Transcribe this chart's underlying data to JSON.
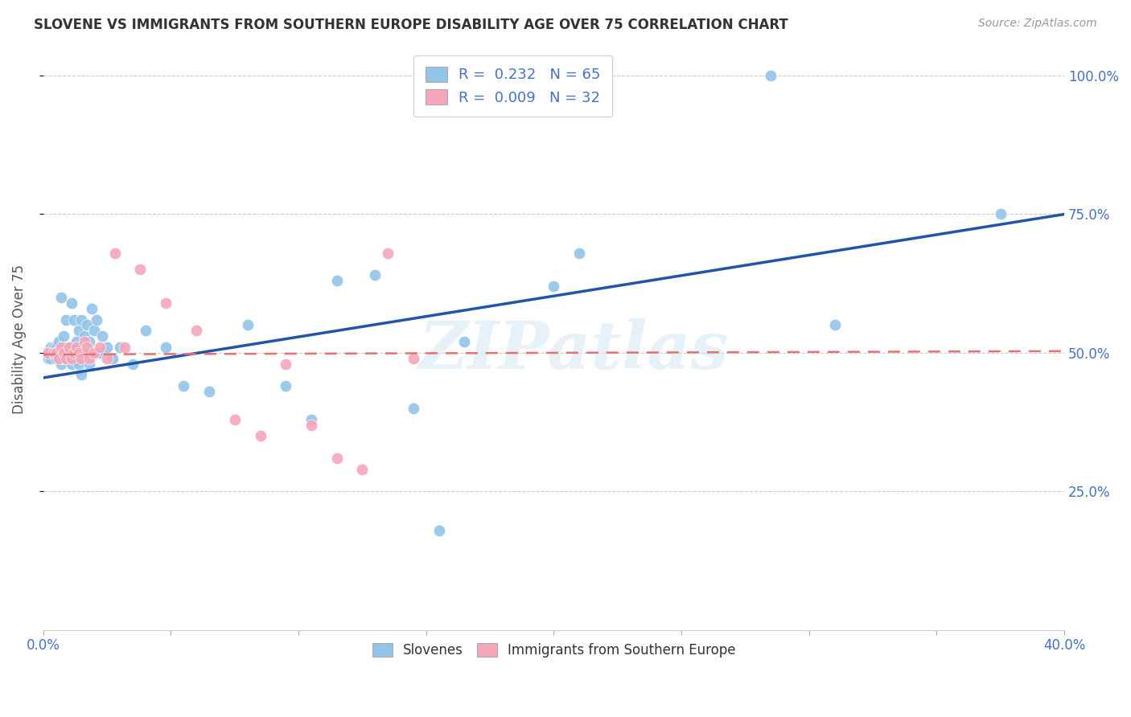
{
  "title": "SLOVENE VS IMMIGRANTS FROM SOUTHERN EUROPE DISABILITY AGE OVER 75 CORRELATION CHART",
  "source": "Source: ZipAtlas.com",
  "ylabel": "Disability Age Over 75",
  "xlim": [
    0.0,
    0.4
  ],
  "ylim": [
    0.0,
    1.05
  ],
  "yticks": [
    0.25,
    0.5,
    0.75,
    1.0
  ],
  "ytick_labels": [
    "25.0%",
    "50.0%",
    "75.0%",
    "100.0%"
  ],
  "xticks": [
    0.0,
    0.05,
    0.1,
    0.15,
    0.2,
    0.25,
    0.3,
    0.35,
    0.4
  ],
  "xtick_labels": [
    "0.0%",
    "",
    "",
    "",
    "",
    "",
    "",
    "",
    "40.0%"
  ],
  "legend_line1": "R =  0.232   N = 65",
  "legend_line2": "R =  0.009   N = 32",
  "color_slovene": "#92C5E8",
  "color_immigrant": "#F4A7B9",
  "trendline_slovene_color": "#2255AA",
  "trendline_immigrant_color": "#E87070",
  "background_color": "#FFFFFF",
  "watermark": "ZIPatlas",
  "slovene_trendline_x": [
    0.0,
    0.4
  ],
  "slovene_trendline_y": [
    0.455,
    0.75
  ],
  "immigrant_trendline_x": [
    0.0,
    0.4
  ],
  "immigrant_trendline_y": [
    0.497,
    0.503
  ],
  "slovene_x": [
    0.001,
    0.002,
    0.002,
    0.003,
    0.003,
    0.004,
    0.004,
    0.005,
    0.005,
    0.005,
    0.006,
    0.006,
    0.006,
    0.007,
    0.007,
    0.007,
    0.008,
    0.008,
    0.008,
    0.009,
    0.009,
    0.01,
    0.01,
    0.011,
    0.011,
    0.012,
    0.012,
    0.013,
    0.014,
    0.014,
    0.015,
    0.015,
    0.016,
    0.016,
    0.017,
    0.018,
    0.018,
    0.019,
    0.02,
    0.021,
    0.022,
    0.023,
    0.025,
    0.027,
    0.03,
    0.035,
    0.04,
    0.048,
    0.055,
    0.065,
    0.08,
    0.095,
    0.105,
    0.115,
    0.13,
    0.145,
    0.155,
    0.165,
    0.17,
    0.175,
    0.2,
    0.21,
    0.285,
    0.31,
    0.375
  ],
  "slovene_y": [
    0.5,
    0.5,
    0.49,
    0.51,
    0.49,
    0.5,
    0.51,
    0.5,
    0.49,
    0.51,
    0.52,
    0.49,
    0.5,
    0.51,
    0.48,
    0.6,
    0.53,
    0.49,
    0.51,
    0.49,
    0.56,
    0.51,
    0.49,
    0.59,
    0.48,
    0.56,
    0.5,
    0.52,
    0.54,
    0.48,
    0.56,
    0.46,
    0.53,
    0.5,
    0.55,
    0.52,
    0.48,
    0.58,
    0.54,
    0.56,
    0.5,
    0.53,
    0.51,
    0.49,
    0.51,
    0.48,
    0.54,
    0.51,
    0.44,
    0.43,
    0.55,
    0.44,
    0.38,
    0.63,
    0.64,
    0.4,
    0.18,
    0.52,
    1.0,
    1.0,
    0.62,
    0.68,
    1.0,
    0.55,
    0.75
  ],
  "immigrant_x": [
    0.002,
    0.004,
    0.005,
    0.006,
    0.007,
    0.008,
    0.009,
    0.01,
    0.011,
    0.012,
    0.013,
    0.014,
    0.015,
    0.016,
    0.017,
    0.018,
    0.02,
    0.022,
    0.025,
    0.028,
    0.032,
    0.038,
    0.048,
    0.06,
    0.075,
    0.085,
    0.095,
    0.105,
    0.115,
    0.125,
    0.135,
    0.145
  ],
  "immigrant_y": [
    0.5,
    0.5,
    0.5,
    0.49,
    0.51,
    0.5,
    0.49,
    0.51,
    0.49,
    0.5,
    0.51,
    0.5,
    0.49,
    0.52,
    0.51,
    0.49,
    0.5,
    0.51,
    0.49,
    0.68,
    0.51,
    0.65,
    0.59,
    0.54,
    0.38,
    0.35,
    0.48,
    0.37,
    0.31,
    0.29,
    0.68,
    0.49
  ]
}
